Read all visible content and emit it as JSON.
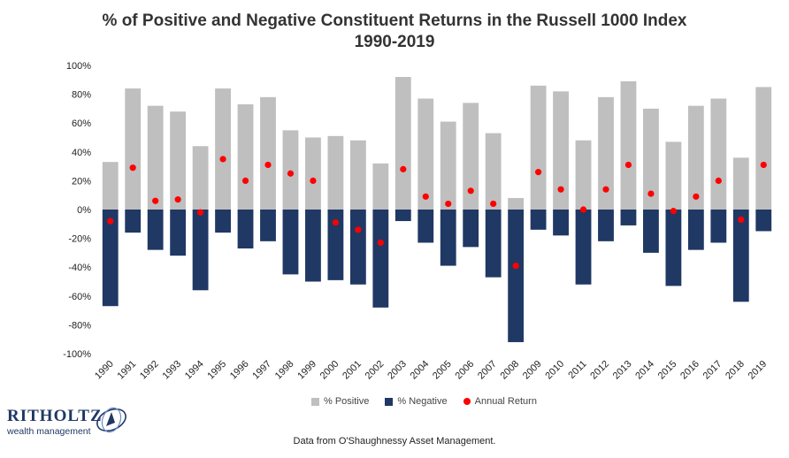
{
  "title_line1": "% of Positive and Negative Constituent Returns in the Russell 1000 Index",
  "title_line2": "1990-2019",
  "source": "Data from O'Shaughnessy Asset Management.",
  "logo": {
    "name": "RITHOLTZ",
    "subtitle": "wealth management"
  },
  "legend": {
    "positive": "% Positive",
    "negative": "% Negative",
    "annual": "Annual Return"
  },
  "colors": {
    "positive": "#bfbfbf",
    "negative": "#203864",
    "annual": "#ff0000",
    "brand": "#1f3864"
  },
  "chart_data": {
    "type": "bar",
    "title": "% of Positive and Negative Constituent Returns in the Russell 1000 Index 1990-2019",
    "ylim": [
      -100,
      100
    ],
    "yticks": [
      "-100%",
      "-80%",
      "-60%",
      "-40%",
      "-20%",
      "0%",
      "20%",
      "40%",
      "60%",
      "80%",
      "100%"
    ],
    "grid": false,
    "legend_position": "bottom",
    "categories": [
      "1990",
      "1991",
      "1992",
      "1993",
      "1994",
      "1995",
      "1996",
      "1997",
      "1998",
      "1999",
      "2000",
      "2001",
      "2002",
      "2003",
      "2004",
      "2005",
      "2006",
      "2007",
      "2008",
      "2009",
      "2010",
      "2011",
      "2012",
      "2013",
      "2014",
      "2015",
      "2016",
      "2017",
      "2018",
      "2019"
    ],
    "series": [
      {
        "name": "% Positive",
        "kind": "bar",
        "values": [
          33,
          84,
          72,
          68,
          44,
          84,
          73,
          78,
          55,
          50,
          51,
          48,
          32,
          92,
          77,
          61,
          74,
          53,
          8,
          86,
          82,
          48,
          78,
          89,
          70,
          47,
          72,
          77,
          36,
          85
        ]
      },
      {
        "name": "% Negative",
        "kind": "bar",
        "values": [
          -67,
          -16,
          -28,
          -32,
          -56,
          -16,
          -27,
          -22,
          -45,
          -50,
          -49,
          -52,
          -68,
          -8,
          -23,
          -39,
          -26,
          -47,
          -92,
          -14,
          -18,
          -52,
          -22,
          -11,
          -30,
          -53,
          -28,
          -23,
          -64,
          -15
        ]
      },
      {
        "name": "Annual Return",
        "kind": "scatter",
        "values": [
          -8,
          29,
          6,
          7,
          -2,
          35,
          20,
          31,
          25,
          20,
          -9,
          -14,
          -23,
          28,
          9,
          4,
          13,
          4,
          -39,
          26,
          14,
          0,
          14,
          31,
          11,
          -1,
          9,
          20,
          -7,
          31
        ]
      }
    ]
  }
}
